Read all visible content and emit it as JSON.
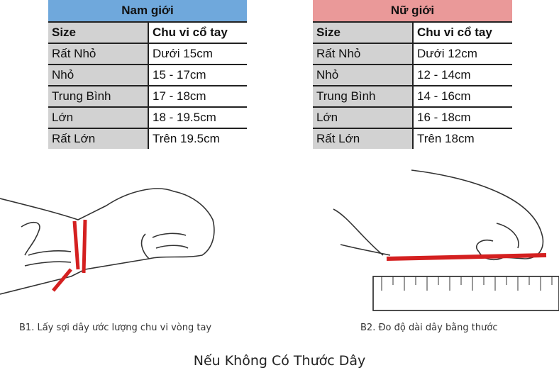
{
  "men": {
    "title": "Nam giới",
    "header_color": "#6fa8dc",
    "columns": [
      "Size",
      "Chu vi cổ tay"
    ],
    "rows": [
      [
        "Rất Nhỏ",
        "Dưới 15cm"
      ],
      [
        "Nhỏ",
        "15 - 17cm"
      ],
      [
        "Trung Bình",
        "17 - 18cm"
      ],
      [
        "Lớn",
        "18 - 19.5cm"
      ],
      [
        "Rất Lớn",
        "Trên 19.5cm"
      ]
    ]
  },
  "women": {
    "title": "Nữ giới",
    "header_color": "#ea9999",
    "columns": [
      "Size",
      "Chu vi cổ tay"
    ],
    "rows": [
      [
        "Rất Nhỏ",
        "Dưới 12cm"
      ],
      [
        "Nhỏ",
        "12 - 14cm"
      ],
      [
        "Trung Bình",
        "14 - 16cm"
      ],
      [
        "Lớn",
        "16 - 18cm"
      ],
      [
        "Rất Lớn",
        "Trên 18cm"
      ]
    ]
  },
  "steps": {
    "b1": "B1. Lấy sợi dây ước lượng chu vi vòng tay",
    "b2": "B2. Đo độ dài dây bằng thước"
  },
  "footer": "Nếu Không Có Thước Dây",
  "string_color": "#d42020"
}
